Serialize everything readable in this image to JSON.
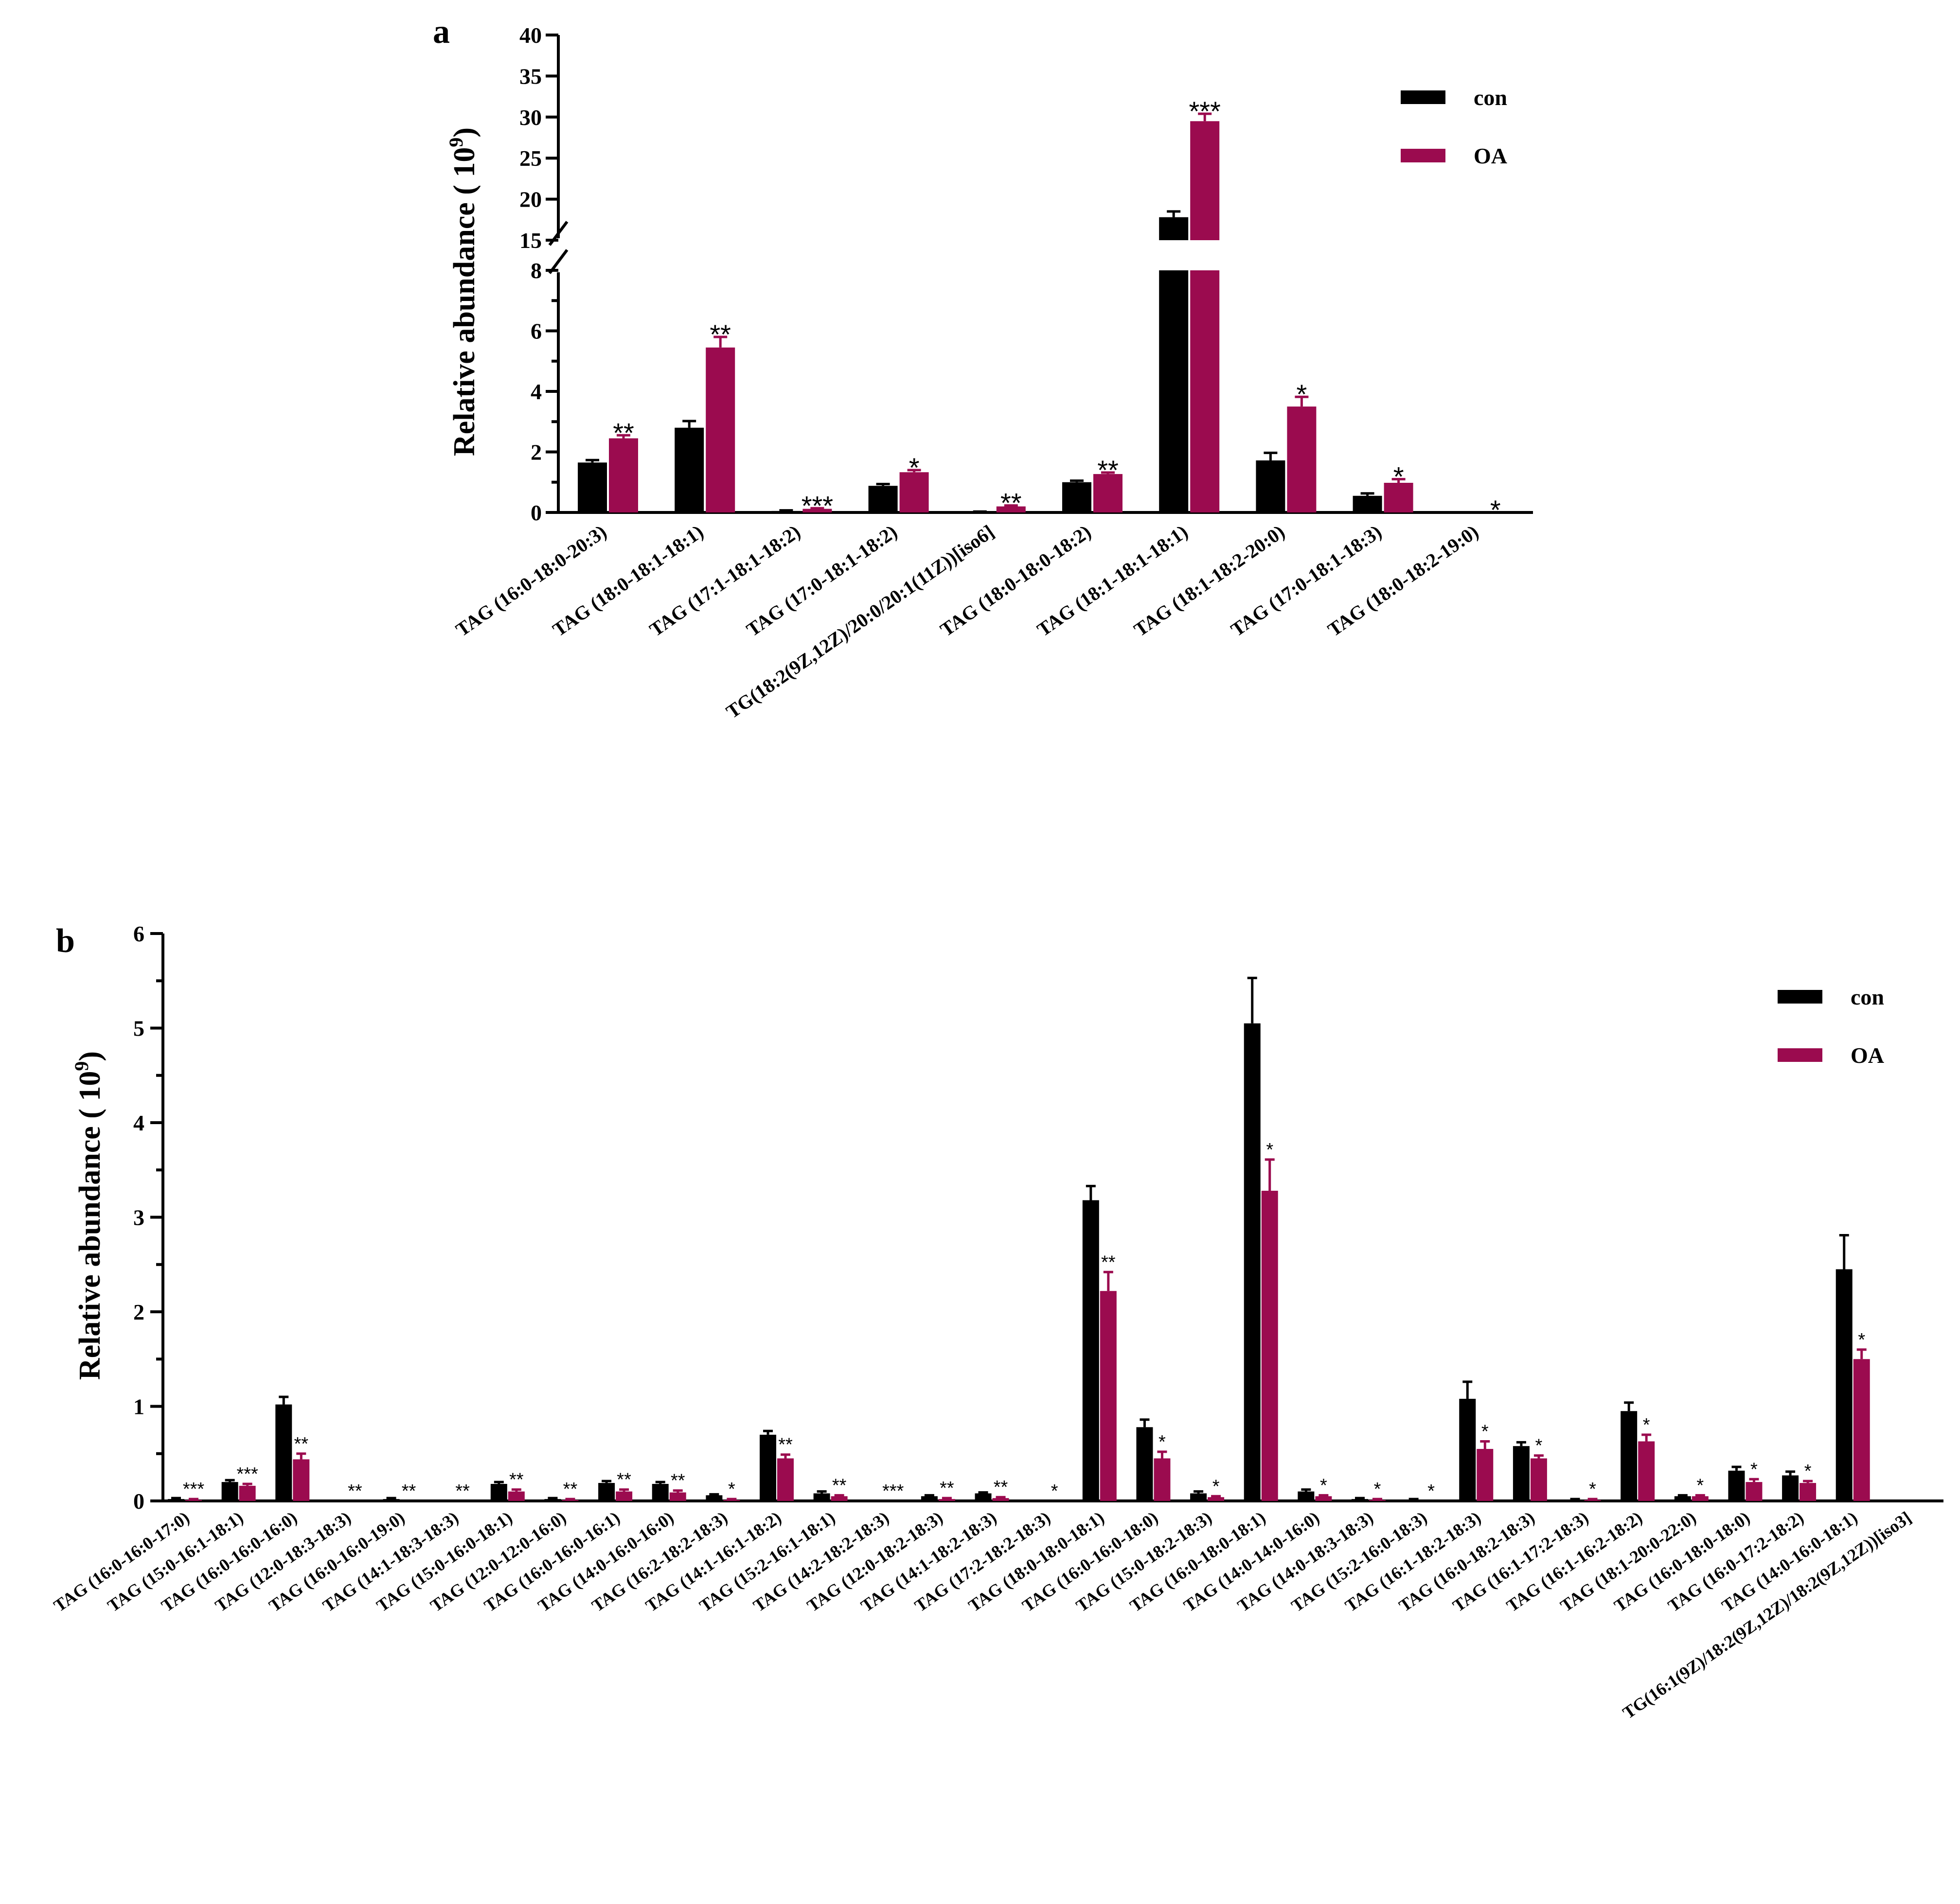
{
  "chart_data": [
    {
      "panel": "a",
      "type": "bar",
      "ylabel": "Relative abundance ( 10",
      "ylabel_sup": "9",
      "ylabel_end": ")",
      "ylim": [
        0,
        40
      ],
      "axis_break": [
        8,
        15
      ],
      "yticks": [
        "0",
        "2",
        "4",
        "6",
        "8",
        "15",
        "20",
        "25",
        "30",
        "35",
        "40"
      ],
      "legend": [
        {
          "name": "con",
          "color": "#000000"
        },
        {
          "name": "OA",
          "color": "#9B0B4F"
        }
      ],
      "categories": [
        "TAG (16:0-18:0-20:3)",
        "TAG (18:0-18:1-18:1)",
        "TAG (17:1-18:1-18:2)",
        "TAG (17:0-18:1-18:2)",
        "TG(18:2(9Z,12Z)/20:0/20:1(11Z))[iso6]",
        "TAG (18:0-18:0-18:2)",
        "TAG (18:1-18:1-18:1)",
        "TAG (18:1-18:2-20:0)",
        "TAG (17:0-18:1-18:3)",
        "TAG (18:0-18:2-19:0)"
      ],
      "series": [
        {
          "name": "con",
          "values": [
            1.65,
            2.8,
            0.05,
            0.88,
            0.02,
            1.0,
            17.8,
            1.72,
            0.55,
            0.0
          ],
          "errors": [
            0.08,
            0.22,
            0.02,
            0.06,
            0.01,
            0.05,
            0.7,
            0.25,
            0.08,
            0.0
          ]
        },
        {
          "name": "OA",
          "values": [
            2.45,
            5.45,
            0.12,
            1.33,
            0.2,
            1.27,
            29.5,
            3.5,
            0.98,
            0.0
          ],
          "errors": [
            0.1,
            0.35,
            0.02,
            0.07,
            0.03,
            0.05,
            0.9,
            0.32,
            0.12,
            0.0
          ]
        }
      ],
      "significance": [
        "**",
        "**",
        "***",
        "*",
        "**",
        "**",
        "***",
        "*",
        "*",
        "*"
      ]
    },
    {
      "panel": "b",
      "type": "bar",
      "ylabel": "Relative abundance ( 10",
      "ylabel_sup": "9",
      "ylabel_end": ")",
      "ylim": [
        0,
        6
      ],
      "yticks": [
        "0",
        "1",
        "2",
        "3",
        "4",
        "5",
        "6"
      ],
      "legend": [
        {
          "name": "con",
          "color": "#000000"
        },
        {
          "name": "OA",
          "color": "#9B0B4F"
        }
      ],
      "categories": [
        "TAG (16:0-16:0-17:0)",
        "TAG (15:0-16:1-18:1)",
        "TAG (16:0-16:0-16:0)",
        "TAG (12:0-18:3-18:3)",
        "TAG (16:0-16:0-19:0)",
        "TAG (14:1-18:3-18:3)",
        "TAG (15:0-16:0-18:1)",
        "TAG (12:0-12:0-16:0)",
        "TAG (16:0-16:0-16:1)",
        "TAG (14:0-16:0-16:0)",
        "TAG (16:2-18:2-18:3)",
        "TAG (14:1-16:1-18:2)",
        "TAG (15:2-16:1-18:1)",
        "TAG (14:2-18:2-18:3)",
        "TAG (12:0-18:2-18:3)",
        "TAG (14:1-18:2-18:3)",
        "TAG (17:2-18:2-18:3)",
        "TAG (18:0-18:0-18:1)",
        "TAG (16:0-16:0-18:0)",
        "TAG (15:0-18:2-18:3)",
        "TAG (16:0-18:0-18:1)",
        "TAG (14:0-14:0-16:0)",
        "TAG (14:0-18:3-18:3)",
        "TAG (15:2-16:0-18:3)",
        "TAG (16:1-18:2-18:3)",
        "TAG (16:0-18:2-18:3)",
        "TAG (16:1-17:2-18:3)",
        "TAG (16:1-16:2-18:2)",
        "TAG (18:1-20:0-22:0)",
        "TAG (16:0-18:0-18:0)",
        "TAG (16:0-17:2-18:2)",
        "TAG (14:0-16:0-18:1)",
        "TG(16:1(9Z)/18:2(9Z,12Z)/18:2(9Z,12Z))[iso3]"
      ],
      "series": [
        {
          "name": "con",
          "values": [
            0.02,
            0.2,
            1.02,
            0.0,
            0.02,
            0.0,
            0.18,
            0.02,
            0.19,
            0.18,
            0.06,
            0.7,
            0.08,
            0.0,
            0.05,
            0.08,
            0.0,
            3.18,
            0.78,
            0.08,
            5.05,
            0.1,
            0.02,
            0.01,
            1.08,
            0.58,
            0.01,
            0.95,
            0.05,
            0.32,
            0.27,
            2.45,
            0.0
          ],
          "errors": [
            0.01,
            0.02,
            0.08,
            0.0,
            0.01,
            0.0,
            0.02,
            0.01,
            0.02,
            0.02,
            0.01,
            0.04,
            0.02,
            0.0,
            0.01,
            0.01,
            0.0,
            0.15,
            0.08,
            0.02,
            0.48,
            0.02,
            0.01,
            0.01,
            0.18,
            0.04,
            0.01,
            0.09,
            0.01,
            0.04,
            0.04,
            0.36,
            0.0
          ]
        },
        {
          "name": "OA",
          "values": [
            0.01,
            0.16,
            0.44,
            0.0,
            0.0,
            0.0,
            0.1,
            0.01,
            0.1,
            0.09,
            0.01,
            0.45,
            0.05,
            0.0,
            0.02,
            0.03,
            0.0,
            2.22,
            0.45,
            0.04,
            3.28,
            0.05,
            0.01,
            0.0,
            0.55,
            0.45,
            0.01,
            0.63,
            0.05,
            0.2,
            0.19,
            1.5,
            0.0
          ],
          "errors": [
            0.01,
            0.02,
            0.06,
            0.0,
            0.0,
            0.0,
            0.02,
            0.01,
            0.02,
            0.02,
            0.01,
            0.04,
            0.01,
            0.0,
            0.01,
            0.01,
            0.0,
            0.2,
            0.07,
            0.01,
            0.33,
            0.01,
            0.01,
            0.0,
            0.08,
            0.03,
            0.01,
            0.07,
            0.01,
            0.03,
            0.02,
            0.1,
            0.0
          ]
        }
      ],
      "significance": [
        "***",
        "***",
        "**",
        "**",
        "**",
        "**",
        "**",
        "**",
        "**",
        "**",
        "*",
        "**",
        "**",
        "***",
        "**",
        "**",
        "*",
        "**",
        "*",
        "*",
        "*",
        "*",
        "*",
        "*",
        "*",
        "*",
        "*",
        "*",
        "*",
        "*",
        "*",
        "*",
        ""
      ]
    }
  ]
}
